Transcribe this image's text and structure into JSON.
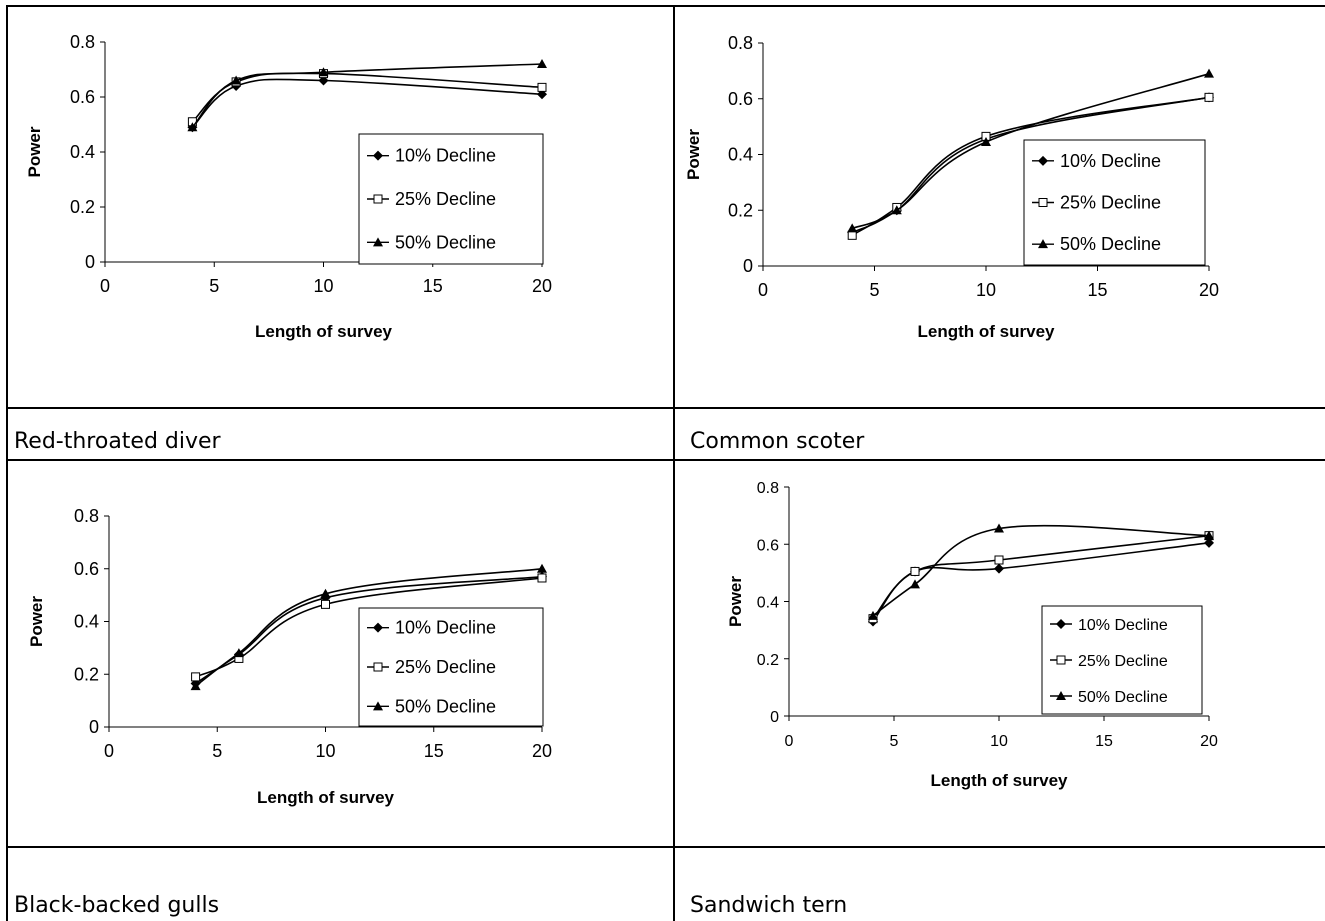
{
  "captions": [
    "Red-throated diver",
    "Common scoter",
    "Black-backed gulls",
    "Sandwich tern"
  ],
  "chart_data": [
    {
      "type": "line",
      "xlabel": "Length of survey",
      "ylabel": "Power",
      "xlim": [
        0,
        20
      ],
      "ylim": [
        0,
        0.8
      ],
      "xticks": [
        "0",
        "5",
        "10",
        "15",
        "20"
      ],
      "yticks": [
        "0",
        "0.2",
        "0.4",
        "0.6",
        "0.8"
      ],
      "legend_position": "right",
      "x": [
        4,
        6,
        10,
        20
      ],
      "series": [
        {
          "name": "10% Decline",
          "marker": "diamond",
          "values": [
            0.49,
            0.64,
            0.66,
            0.61
          ]
        },
        {
          "name": "25% Decline",
          "marker": "square",
          "values": [
            0.51,
            0.655,
            0.685,
            0.635
          ]
        },
        {
          "name": "50% Decline",
          "marker": "triangle",
          "values": [
            0.49,
            0.66,
            0.69,
            0.72
          ]
        }
      ]
    },
    {
      "type": "line",
      "xlabel": "Length of survey",
      "ylabel": "Power",
      "xlim": [
        0,
        20
      ],
      "ylim": [
        0,
        0.8
      ],
      "xticks": [
        "0",
        "5",
        "10",
        "15",
        "20"
      ],
      "yticks": [
        "0",
        "0.2",
        "0.4",
        "0.6",
        "0.8"
      ],
      "legend_position": "right",
      "x": [
        4,
        6,
        10,
        20
      ],
      "series": [
        {
          "name": "10% Decline",
          "marker": "diamond",
          "values": [
            0.12,
            0.2,
            0.455,
            0.605
          ]
        },
        {
          "name": "25% Decline",
          "marker": "square",
          "values": [
            0.11,
            0.21,
            0.465,
            0.605
          ]
        },
        {
          "name": "50% Decline",
          "marker": "triangle",
          "values": [
            0.135,
            0.2,
            0.445,
            0.69
          ]
        }
      ]
    },
    {
      "type": "line",
      "xlabel": "Length of survey",
      "ylabel": "Power",
      "xlim": [
        0,
        20
      ],
      "ylim": [
        0,
        0.8
      ],
      "xticks": [
        "0",
        "5",
        "10",
        "15",
        "20"
      ],
      "yticks": [
        "0",
        "0.2",
        "0.4",
        "0.6",
        "0.8"
      ],
      "legend_position": "right",
      "x": [
        4,
        6,
        10,
        20
      ],
      "series": [
        {
          "name": "10% Decline",
          "marker": "diamond",
          "values": [
            0.165,
            0.275,
            0.49,
            0.57
          ]
        },
        {
          "name": "25% Decline",
          "marker": "square",
          "values": [
            0.19,
            0.26,
            0.465,
            0.565
          ]
        },
        {
          "name": "50% Decline",
          "marker": "triangle",
          "values": [
            0.155,
            0.28,
            0.505,
            0.6
          ]
        }
      ]
    },
    {
      "type": "line",
      "xlabel": "Length of survey",
      "ylabel": "Power",
      "xlim": [
        0,
        20
      ],
      "ylim": [
        0,
        0.8
      ],
      "xticks": [
        "0",
        "5",
        "10",
        "15",
        "20"
      ],
      "yticks": [
        "0",
        "0.2",
        "0.4",
        "0.6",
        "0.8"
      ],
      "legend_position": "right",
      "x": [
        4,
        6,
        10,
        20
      ],
      "series": [
        {
          "name": "10% Decline",
          "marker": "diamond",
          "values": [
            0.33,
            0.505,
            0.515,
            0.605
          ]
        },
        {
          "name": "25% Decline",
          "marker": "square",
          "values": [
            0.34,
            0.505,
            0.545,
            0.63
          ]
        },
        {
          "name": "50% Decline",
          "marker": "triangle",
          "values": [
            0.35,
            0.46,
            0.655,
            0.63
          ]
        }
      ]
    }
  ]
}
